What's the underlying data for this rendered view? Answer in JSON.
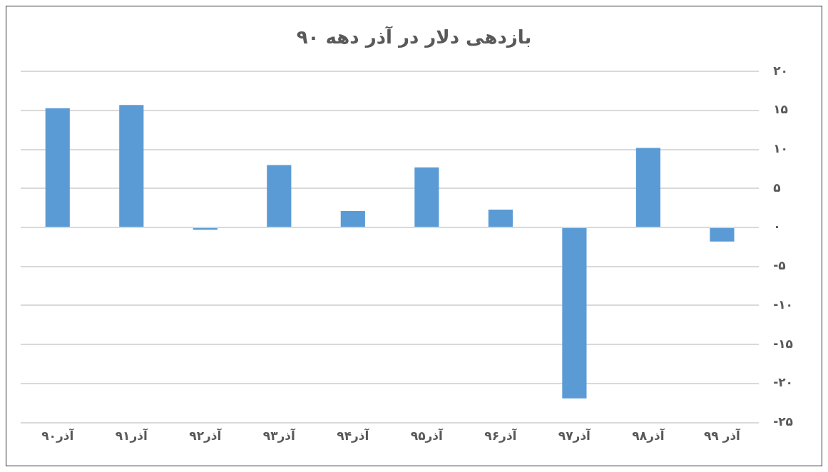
{
  "chart_data": {
    "type": "bar",
    "title": "بازدهی دلار در آذر دهه ۹۰",
    "categories": [
      "آذر۹۰",
      "آذر۹۱",
      "آذر۹۲",
      "آذر۹۳",
      "آذر۹۴",
      "آذر۹۵",
      "آذر۹۶",
      "آذر۹۷",
      "آذر۹۸",
      "آذر ۹۹"
    ],
    "values": [
      15.3,
      15.7,
      -0.3,
      8.0,
      2.1,
      7.7,
      2.3,
      -21.9,
      10.2,
      -1.8
    ],
    "color": "#5b9bd5",
    "ylim": [
      -25,
      20
    ],
    "yticks": [
      {
        "value": 20,
        "label": "۲۰"
      },
      {
        "value": 15,
        "label": "۱۵"
      },
      {
        "value": 10,
        "label": "۱۰"
      },
      {
        "value": 5,
        "label": "۵"
      },
      {
        "value": 0,
        "label": "۰"
      },
      {
        "value": -5,
        "label": "-۵"
      },
      {
        "value": -10,
        "label": "-۱۰"
      },
      {
        "value": -15,
        "label": "-۱۵"
      },
      {
        "value": -20,
        "label": "-۲۰"
      },
      {
        "value": -25,
        "label": "-۲۵"
      }
    ],
    "grid": "y"
  }
}
